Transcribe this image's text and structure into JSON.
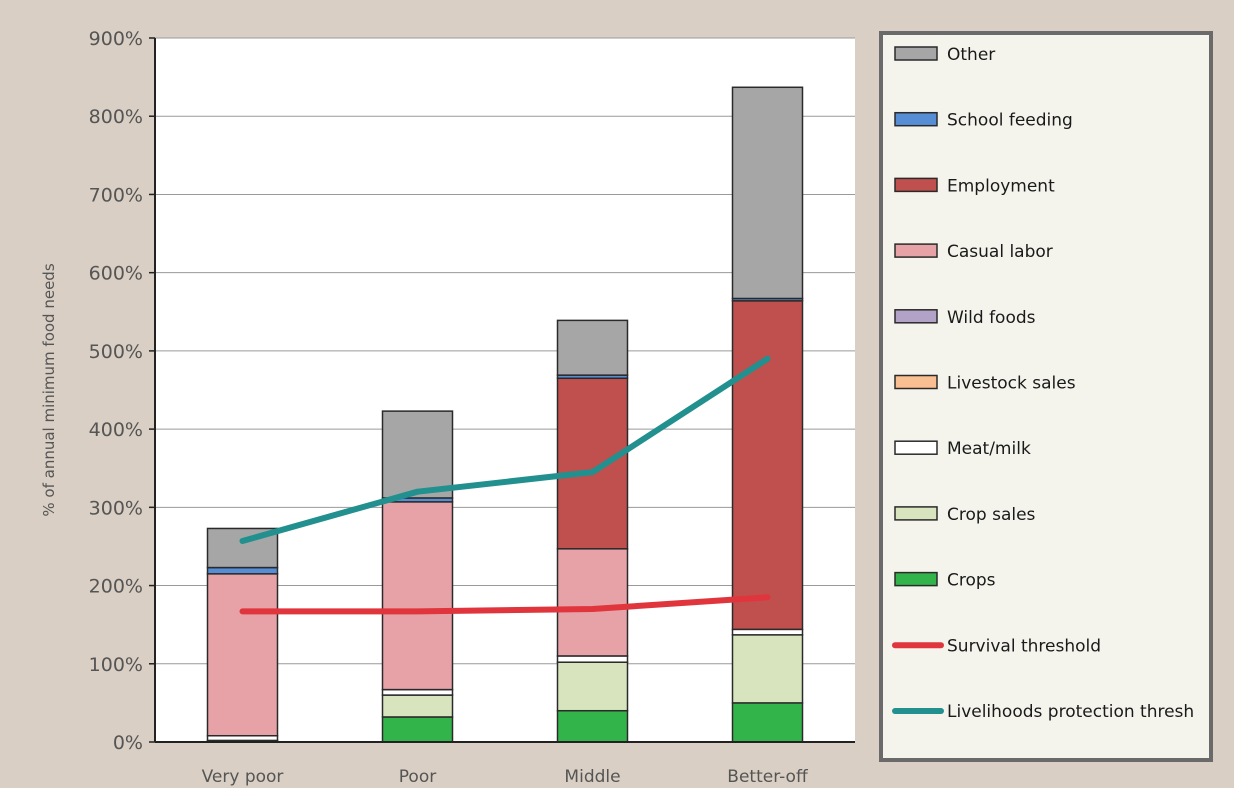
{
  "chart_data": {
    "type": "bar",
    "stacked": true,
    "ylabel": "% of annual minimum food needs",
    "xlabel": "",
    "ylim": [
      0,
      900
    ],
    "y_ticks": [
      "0%",
      "100%",
      "200%",
      "300%",
      "400%",
      "500%",
      "600%",
      "700%",
      "800%",
      "900%"
    ],
    "grid": "horizontal",
    "legend_position": "right",
    "categories": [
      "Very poor",
      "Poor",
      "Middle",
      "Better-off"
    ],
    "series": [
      {
        "name": "Crops",
        "color": "#33b44a",
        "values": [
          0,
          32,
          40,
          50
        ]
      },
      {
        "name": "Crop sales",
        "color": "#d7e4bd",
        "values": [
          2,
          28,
          62,
          87
        ]
      },
      {
        "name": "Meat/milk",
        "color": "#ffffff",
        "values": [
          6,
          7,
          8,
          7
        ]
      },
      {
        "name": "Livestock sales",
        "color": "#f9be92",
        "values": [
          0,
          0,
          0,
          0
        ]
      },
      {
        "name": "Wild foods",
        "color": "#b3a2c7",
        "values": [
          0,
          0,
          0,
          0
        ]
      },
      {
        "name": "Casual  labor",
        "color": "#e6a2a6",
        "values": [
          207,
          240,
          137,
          0
        ]
      },
      {
        "name": "Employment",
        "color": "#c0504d",
        "values": [
          0,
          0,
          218,
          420
        ]
      },
      {
        "name": "School feeding",
        "color": "#558ed5",
        "values": [
          8,
          5,
          4,
          3
        ]
      },
      {
        "name": "Other",
        "color": "#a6a6a6",
        "values": [
          50,
          111,
          70,
          270
        ]
      }
    ],
    "lines": [
      {
        "name": "Survival threshold",
        "color": "#e0353c",
        "values": [
          167,
          167,
          170,
          185
        ]
      },
      {
        "name": "Livelihoods protection thresh",
        "color": "#21908f",
        "values": [
          257,
          320,
          345,
          490
        ]
      }
    ],
    "legend": [
      {
        "label": "Other",
        "color": "#a6a6a6",
        "kind": "box"
      },
      {
        "label": "School feeding",
        "color": "#558ed5",
        "kind": "box"
      },
      {
        "label": "Employment",
        "color": "#c0504d",
        "kind": "box"
      },
      {
        "label": "Casual  labor",
        "color": "#e6a2a6",
        "kind": "box"
      },
      {
        "label": "Wild foods",
        "color": "#b3a2c7",
        "kind": "box"
      },
      {
        "label": "Livestock sales",
        "color": "#f9be92",
        "kind": "box"
      },
      {
        "label": "Meat/milk",
        "color": "#ffffff",
        "kind": "box"
      },
      {
        "label": "Crop sales",
        "color": "#d7e4bd",
        "kind": "box"
      },
      {
        "label": "Crops",
        "color": "#33b44a",
        "kind": "box"
      },
      {
        "label": "Survival threshold",
        "color": "#e0353c",
        "kind": "line"
      },
      {
        "label": "Livelihoods protection thresh",
        "color": "#21908f",
        "kind": "line"
      }
    ]
  }
}
